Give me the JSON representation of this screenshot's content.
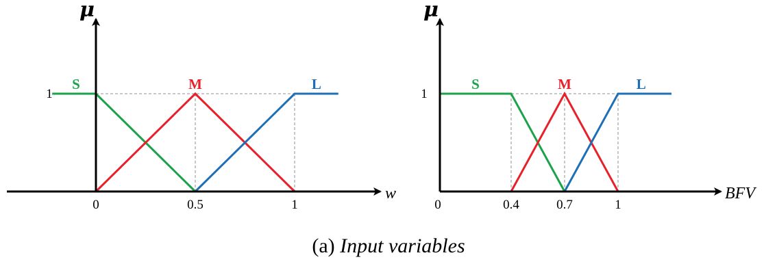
{
  "colors": {
    "S": "#1aa34a",
    "M": "#e8202a",
    "L": "#1f6fb6",
    "axis": "#000000",
    "guide": "#a8a8a8"
  },
  "caption": {
    "prefix": "(a)",
    "text": "Input variables"
  },
  "chart_data": [
    {
      "type": "line",
      "xlabel": "w",
      "ylabel": "μ",
      "x_ticks": [
        {
          "value": 0,
          "label": "0"
        },
        {
          "value": 0.5,
          "label": "0.5"
        },
        {
          "value": 1,
          "label": "1"
        }
      ],
      "y_ticks": [
        {
          "value": 1,
          "label": "1"
        }
      ],
      "xlim": [
        -0.45,
        1.42
      ],
      "ylim": [
        0,
        1.55
      ],
      "guides_x": [
        0.5,
        1
      ],
      "series": [
        {
          "name": "S",
          "color_key": "S",
          "points": [
            [
              -0.22,
              1
            ],
            [
              0,
              1
            ],
            [
              0.5,
              0
            ]
          ],
          "label_x": -0.1
        },
        {
          "name": "M",
          "color_key": "M",
          "points": [
            [
              0,
              0
            ],
            [
              0.5,
              1
            ],
            [
              1,
              0
            ]
          ],
          "label_x": 0.5
        },
        {
          "name": "L",
          "color_key": "L",
          "points": [
            [
              0.5,
              0
            ],
            [
              1,
              1
            ],
            [
              1.22,
              1
            ]
          ],
          "label_x": 1.11
        }
      ]
    },
    {
      "type": "line",
      "xlabel": "BFV",
      "ylabel": "μ",
      "x_ticks": [
        {
          "value": 0,
          "label": "0"
        },
        {
          "value": 0.4,
          "label": "0.4"
        },
        {
          "value": 0.7,
          "label": "0.7"
        },
        {
          "value": 1,
          "label": "1"
        }
      ],
      "y_ticks": [
        {
          "value": 1,
          "label": "1"
        }
      ],
      "xlim": [
        0,
        1.42
      ],
      "ylim": [
        0,
        1.55
      ],
      "guides_x": [
        0.4,
        0.7,
        1
      ],
      "series": [
        {
          "name": "S",
          "color_key": "S",
          "points": [
            [
              0,
              1
            ],
            [
              0.4,
              1
            ],
            [
              0.7,
              0
            ]
          ],
          "label_x": 0.2
        },
        {
          "name": "M",
          "color_key": "M",
          "points": [
            [
              0.4,
              0
            ],
            [
              0.7,
              1
            ],
            [
              1,
              0
            ]
          ],
          "label_x": 0.7
        },
        {
          "name": "L",
          "color_key": "L",
          "points": [
            [
              0.7,
              0
            ],
            [
              1,
              1
            ],
            [
              1.3,
              1
            ]
          ],
          "label_x": 1.13
        }
      ]
    }
  ]
}
